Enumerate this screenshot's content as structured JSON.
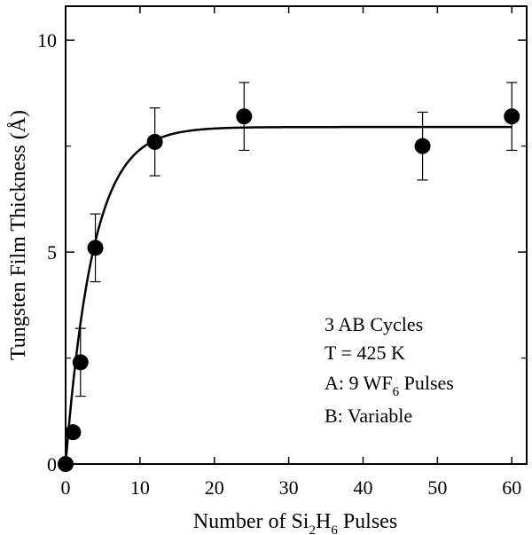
{
  "chart_data": {
    "type": "scatter",
    "title": "",
    "xlabel_parts": [
      "Number of Si",
      "2",
      "H",
      "6",
      " Pulses"
    ],
    "ylabel": "Tungsten Film Thickness (Å)",
    "xlim": [
      0,
      62
    ],
    "ylim": [
      0,
      10.8
    ],
    "x_ticks": [
      0,
      10,
      20,
      30,
      40,
      50,
      60
    ],
    "y_ticks": [
      0,
      5,
      10
    ],
    "y_minor_ticks": [
      2.5,
      7.5
    ],
    "grid": false,
    "series": [
      {
        "x": [
          0,
          1,
          2,
          4,
          12,
          24,
          48,
          60
        ],
        "y": [
          0.0,
          0.75,
          2.4,
          5.1,
          7.6,
          8.2,
          7.5,
          8.2
        ],
        "yerr": [
          0.0,
          0.0,
          0.8,
          0.8,
          0.8,
          0.8,
          0.8,
          0.8
        ]
      }
    ],
    "fit_curve": {
      "model": "y = A*(1 - exp(-x/tau))",
      "A": 7.95,
      "tau": 3.7
    },
    "annotations": {
      "line1": "3 AB Cycles",
      "line2": "T = 425 K",
      "line3_parts": [
        "A: 9 WF",
        "6",
        " Pulses"
      ],
      "line4": "B: Variable"
    },
    "colors": {
      "marker": "#000000",
      "line": "#000000",
      "background": "#ffffff"
    }
  }
}
